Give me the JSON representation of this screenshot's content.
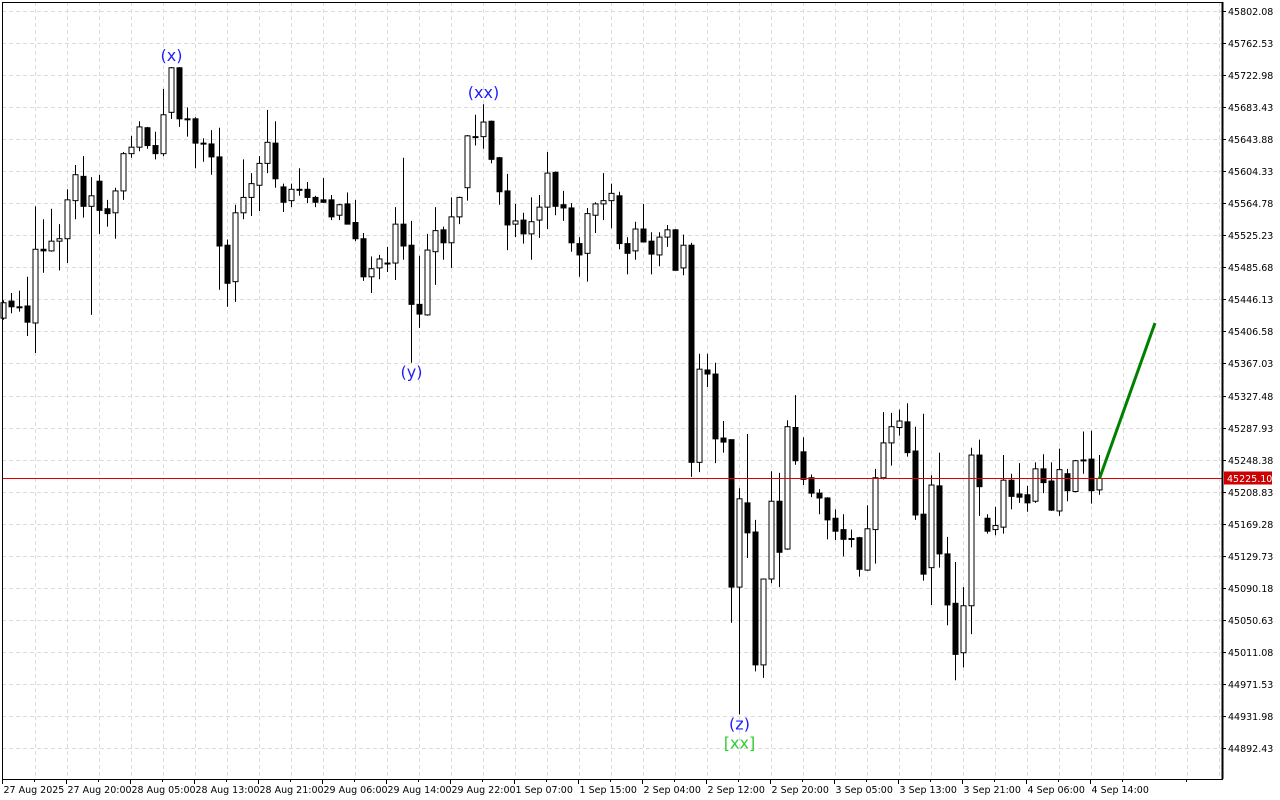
{
  "chart_data": {
    "type": "candlestick",
    "colors": {
      "bull_body": "#ffffff",
      "bear_body": "#000000",
      "outline": "#000000",
      "grid": "#dcdcdc",
      "bid_line": "#e00000",
      "price_label_bg": "#cc0000",
      "projection": "#008000",
      "wave_label": "#1e1eff",
      "wave_label_alt": "#33cc33"
    },
    "grid": true,
    "ylim": [
      44862,
      45812
    ],
    "y_ticks": [
      "45802.08",
      "45762.53",
      "45722.98",
      "45683.43",
      "45643.88",
      "45604.33",
      "45564.78",
      "45525.23",
      "45485.68",
      "45446.13",
      "45406.58",
      "45367.03",
      "45327.48",
      "45287.93",
      "45248.38",
      "45208.83",
      "45169.28",
      "45129.73",
      "45090.18",
      "45050.63",
      "45011.08",
      "44971.53",
      "44931.98",
      "44892.43"
    ],
    "x_ticks": [
      {
        "index": 0,
        "label": "27 Aug 2025"
      },
      {
        "index": 8,
        "label": "27 Aug 20:00"
      },
      {
        "index": 16,
        "label": "28 Aug 05:00"
      },
      {
        "index": 24,
        "label": "28 Aug 13:00"
      },
      {
        "index": 32,
        "label": "28 Aug 21:00"
      },
      {
        "index": 40,
        "label": "29 Aug 06:00"
      },
      {
        "index": 48,
        "label": "29 Aug 14:00"
      },
      {
        "index": 56,
        "label": "29 Aug 22:00"
      },
      {
        "index": 64,
        "label": "1 Sep 07:00"
      },
      {
        "index": 72,
        "label": "1 Sep 15:00"
      },
      {
        "index": 80,
        "label": "2 Sep 04:00"
      },
      {
        "index": 88,
        "label": "2 Sep 12:00"
      },
      {
        "index": 96,
        "label": "2 Sep 20:00"
      },
      {
        "index": 104,
        "label": "3 Sep 05:00"
      },
      {
        "index": 112,
        "label": "3 Sep 13:00"
      },
      {
        "index": 120,
        "label": "3 Sep 21:00"
      },
      {
        "index": 128,
        "label": "4 Sep 06:00"
      },
      {
        "index": 136,
        "label": "4 Sep 14:00"
      }
    ],
    "current_price": "45225.10",
    "ohlc": [
      [
        45423,
        45445,
        45421,
        45442
      ],
      [
        45444,
        45454,
        45429,
        45437
      ],
      [
        45437,
        45457,
        45431,
        45436
      ],
      [
        45438,
        45474,
        45401,
        45418
      ],
      [
        45417,
        45561,
        45380,
        45508
      ],
      [
        45508,
        45545,
        45479,
        45506
      ],
      [
        45506,
        45558,
        45505,
        45518
      ],
      [
        45518,
        45539,
        45482,
        45521
      ],
      [
        45521,
        45582,
        45491,
        45569
      ],
      [
        45568,
        45612,
        45545,
        45600
      ],
      [
        45598,
        45623,
        45547,
        45561
      ],
      [
        45561,
        45597,
        45427,
        45574
      ],
      [
        45592,
        45600,
        45527,
        45556
      ],
      [
        45558,
        45569,
        45536,
        45552
      ],
      [
        45553,
        45584,
        45521,
        45580
      ],
      [
        45580,
        45628,
        45569,
        45626
      ],
      [
        45626,
        45648,
        45621,
        45634
      ],
      [
        45634,
        45666,
        45629,
        45659
      ],
      [
        45658,
        45659,
        45632,
        45636
      ],
      [
        45636,
        45653,
        45619,
        45626
      ],
      [
        45626,
        45706,
        45623,
        45674
      ],
      [
        45677,
        45733,
        45669,
        45732
      ],
      [
        45732,
        45733,
        45659,
        45669
      ],
      [
        45669,
        45683,
        45647,
        45668
      ],
      [
        45669,
        45671,
        45608,
        45639
      ],
      [
        45639,
        45645,
        45616,
        45638
      ],
      [
        45638,
        45655,
        45600,
        45622
      ],
      [
        45622,
        45658,
        45458,
        45512
      ],
      [
        45513,
        45520,
        45437,
        45466
      ],
      [
        45468,
        45563,
        45443,
        45553
      ],
      [
        45553,
        45619,
        45545,
        45572
      ],
      [
        45572,
        45602,
        45549,
        45589
      ],
      [
        45587,
        45623,
        45555,
        45614
      ],
      [
        45614,
        45680,
        45602,
        45640
      ],
      [
        45639,
        45666,
        45584,
        45595
      ],
      [
        45585,
        45589,
        45554,
        45566
      ],
      [
        45568,
        45589,
        45560,
        45582
      ],
      [
        45582,
        45608,
        45574,
        45581
      ],
      [
        45582,
        45591,
        45565,
        45572
      ],
      [
        45572,
        45574,
        45560,
        45566
      ],
      [
        45569,
        45596,
        45565,
        45566
      ],
      [
        45569,
        45575,
        45544,
        45548
      ],
      [
        45550,
        45564,
        45544,
        45563
      ],
      [
        45564,
        45578,
        45539,
        45539
      ],
      [
        45541,
        45569,
        45518,
        45521
      ],
      [
        45521,
        45528,
        45469,
        45474
      ],
      [
        45474,
        45499,
        45454,
        45484
      ],
      [
        45485,
        45501,
        45471,
        45496
      ],
      [
        45491,
        45511,
        45480,
        45490
      ],
      [
        45491,
        45560,
        45470,
        45539
      ],
      [
        45539,
        45621,
        45495,
        45512
      ],
      [
        45513,
        45543,
        45368,
        45440
      ],
      [
        45440,
        45500,
        45411,
        45428
      ],
      [
        45427,
        45527,
        45426,
        45507
      ],
      [
        45505,
        45560,
        45464,
        45531
      ],
      [
        45532,
        45536,
        45495,
        45516
      ],
      [
        45516,
        45572,
        45485,
        45548
      ],
      [
        45548,
        45573,
        45539,
        45572
      ],
      [
        45584,
        45649,
        45568,
        45648
      ],
      [
        45647,
        45674,
        45636,
        45646
      ],
      [
        45647,
        45687,
        45632,
        45665
      ],
      [
        45666,
        45667,
        45614,
        45619
      ],
      [
        45621,
        45622,
        45563,
        45579
      ],
      [
        45580,
        45601,
        45507,
        45538
      ],
      [
        45539,
        45564,
        45523,
        45543
      ],
      [
        45544,
        45553,
        45515,
        45527
      ],
      [
        45527,
        45572,
        45495,
        45542
      ],
      [
        45544,
        45575,
        45522,
        45560
      ],
      [
        45560,
        45628,
        45533,
        45602
      ],
      [
        45603,
        45604,
        45550,
        45561
      ],
      [
        45563,
        45580,
        45543,
        45559
      ],
      [
        45559,
        45565,
        45505,
        45516
      ],
      [
        45515,
        45523,
        45474,
        45501
      ],
      [
        45503,
        45559,
        45468,
        45552
      ],
      [
        45550,
        45566,
        45528,
        45564
      ],
      [
        45564,
        45602,
        45544,
        45568
      ],
      [
        45568,
        45589,
        45534,
        45577
      ],
      [
        45574,
        45579,
        45508,
        45515
      ],
      [
        45515,
        45523,
        45477,
        45503
      ],
      [
        45506,
        45542,
        45495,
        45533
      ],
      [
        45533,
        45564,
        45517,
        45517
      ],
      [
        45518,
        45529,
        45477,
        45502
      ],
      [
        45501,
        45529,
        45487,
        45523
      ],
      [
        45523,
        45538,
        45511,
        45532
      ],
      [
        45532,
        45533,
        45482,
        45482
      ],
      [
        45485,
        45526,
        45476,
        45513
      ],
      [
        45513,
        45516,
        45227,
        45245
      ],
      [
        45245,
        45379,
        45233,
        45360
      ],
      [
        45359,
        45379,
        45338,
        45354
      ],
      [
        45354,
        45368,
        45244,
        45274
      ],
      [
        45275,
        45296,
        45257,
        45270
      ],
      [
        45273,
        45273,
        45047,
        45091
      ],
      [
        45091,
        45213,
        44934,
        45200
      ],
      [
        45195,
        45280,
        45127,
        45158
      ],
      [
        45159,
        45174,
        44987,
        44995
      ],
      [
        44995,
        45101,
        44979,
        45101
      ],
      [
        45101,
        45234,
        45096,
        45197
      ],
      [
        45197,
        45232,
        45091,
        45134
      ],
      [
        45138,
        45297,
        45137,
        45289
      ],
      [
        45288,
        45328,
        45242,
        45247
      ],
      [
        45258,
        45276,
        45217,
        45224
      ],
      [
        45226,
        45230,
        45202,
        45207
      ],
      [
        45207,
        45212,
        45181,
        45201
      ],
      [
        45201,
        45202,
        45150,
        45174
      ],
      [
        45176,
        45187,
        45149,
        45160
      ],
      [
        45162,
        45181,
        45129,
        45150
      ],
      [
        45151,
        45162,
        45140,
        45150
      ],
      [
        45152,
        45153,
        45104,
        45113
      ],
      [
        45112,
        45192,
        45111,
        45163
      ],
      [
        45162,
        45237,
        45120,
        45226
      ],
      [
        45226,
        45307,
        45224,
        45269
      ],
      [
        45269,
        45306,
        45241,
        45289
      ],
      [
        45288,
        45310,
        45278,
        45296
      ],
      [
        45295,
        45318,
        45252,
        45257
      ],
      [
        45259,
        45289,
        45174,
        45180
      ],
      [
        45181,
        45305,
        45099,
        45107
      ],
      [
        45115,
        45229,
        45069,
        45217
      ],
      [
        45216,
        45257,
        45115,
        45132
      ],
      [
        45132,
        45153,
        45044,
        45069
      ],
      [
        45071,
        45122,
        44976,
        45008
      ],
      [
        45010,
        45091,
        44992,
        45068
      ],
      [
        45068,
        45263,
        45033,
        45254
      ],
      [
        45254,
        45273,
        45179,
        45215
      ],
      [
        45176,
        45181,
        45157,
        45160
      ],
      [
        45162,
        45190,
        45155,
        45167
      ],
      [
        45165,
        45254,
        45157,
        45223
      ],
      [
        45223,
        45231,
        45187,
        45203
      ],
      [
        45206,
        45244,
        45195,
        45202
      ],
      [
        45205,
        45216,
        45184,
        45195
      ],
      [
        45197,
        45245,
        45195,
        45237
      ],
      [
        45237,
        45255,
        45207,
        45220
      ],
      [
        45222,
        45245,
        45185,
        45186
      ],
      [
        45185,
        45262,
        45179,
        45236
      ],
      [
        45231,
        45237,
        45197,
        45210
      ],
      [
        45209,
        45248,
        45208,
        45247
      ],
      [
        45247,
        45283,
        45231,
        45248
      ],
      [
        45249,
        45284,
        45194,
        45210
      ],
      [
        45211,
        45254,
        45205,
        45225.1
      ]
    ],
    "wave_labels": [
      {
        "text": "(x)",
        "index": 21,
        "position": "above",
        "style": "primary"
      },
      {
        "text": "(y)",
        "index": 51,
        "position": "below",
        "style": "primary"
      },
      {
        "text": "(xx)",
        "index": 60,
        "position": "above",
        "style": "primary"
      },
      {
        "text": "(z)",
        "index": 92,
        "position": "below",
        "style": "primary"
      },
      {
        "text": "[xx]",
        "index": 92,
        "position": "below2",
        "style": "alt"
      }
    ],
    "projection": {
      "from_index": 137,
      "from_price": 45225.1,
      "to_index": 144,
      "to_price": 45417
    }
  }
}
